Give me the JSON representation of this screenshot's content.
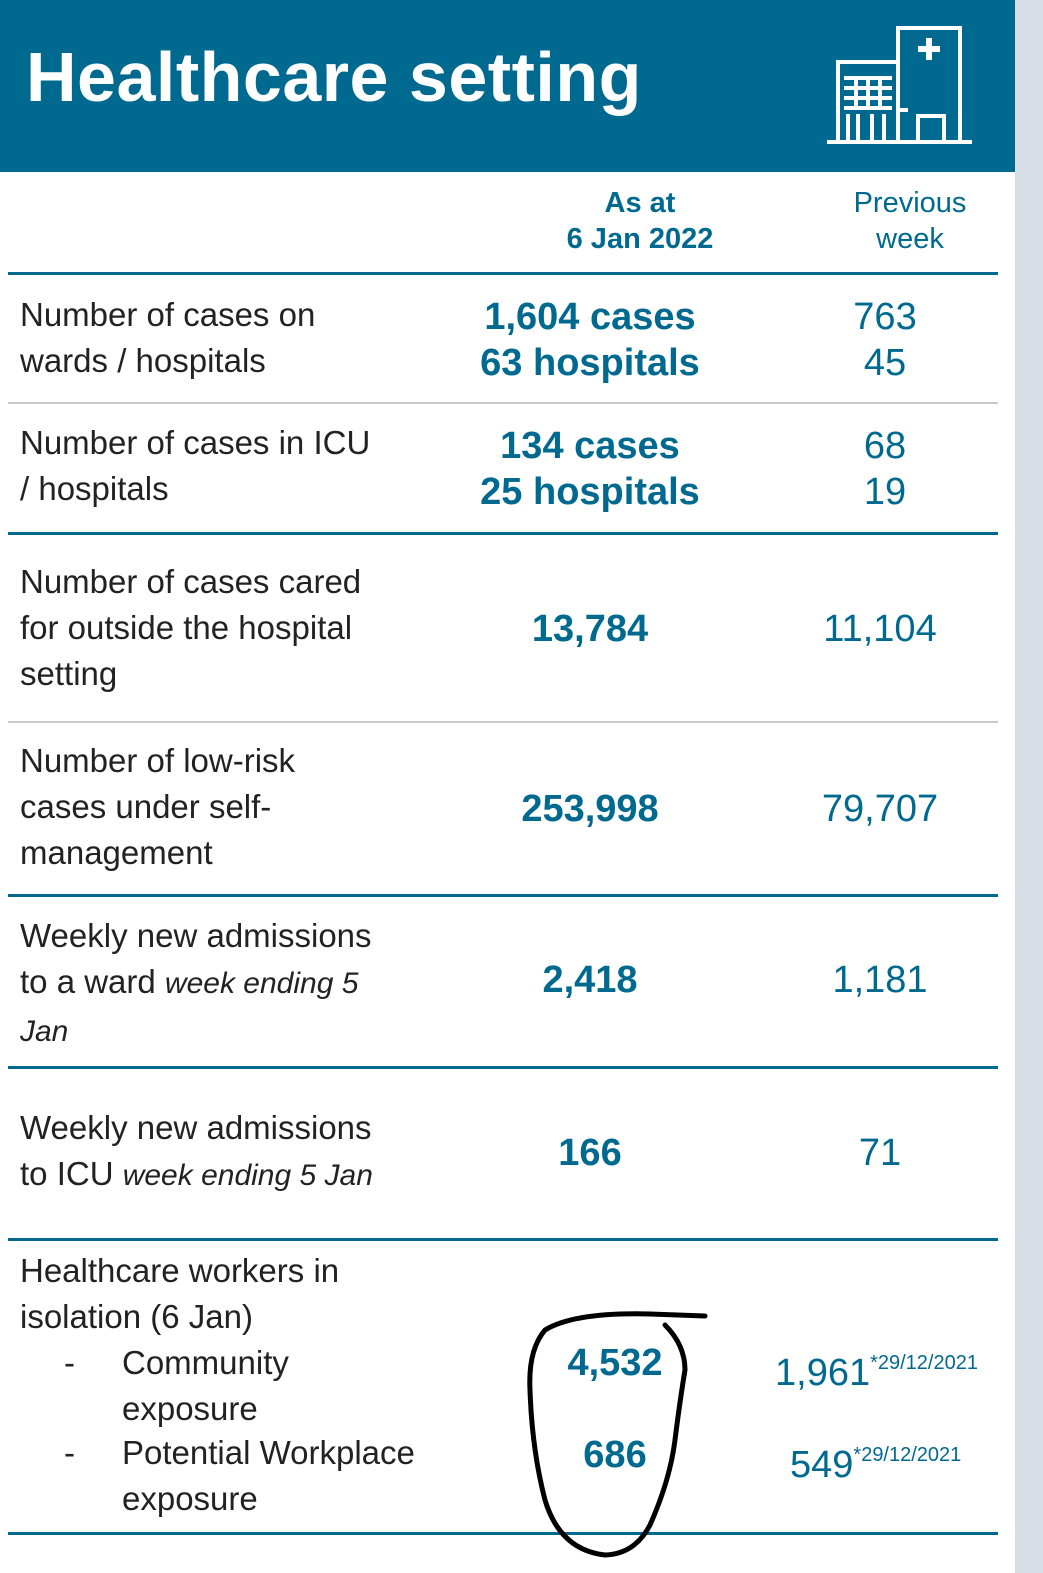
{
  "header": {
    "title": "Healthcare setting",
    "icon": "hospital-icon"
  },
  "columns": {
    "current": [
      "As at",
      "6 Jan 2022"
    ],
    "previous": [
      "Previous",
      "week"
    ]
  },
  "rows": [
    {
      "label": [
        "Number of cases on",
        "wards / hospitals"
      ],
      "current": [
        "1,604 cases",
        "63 hospitals"
      ],
      "previous": [
        "763",
        "45"
      ]
    },
    {
      "label": [
        "Number of cases in ICU",
        "/ hospitals"
      ],
      "current": [
        "134 cases",
        "25 hospitals"
      ],
      "previous": [
        "68",
        "19"
      ]
    },
    {
      "label": [
        "Number of cases cared",
        "for outside the hospital",
        "setting"
      ],
      "current": "13,784",
      "previous": "11,104"
    },
    {
      "label": [
        "Number of low-risk",
        "cases under self-",
        "management"
      ],
      "current": "253,998",
      "previous": "79,707"
    },
    {
      "label_line1": "Weekly new admissions",
      "label_line2_plain": "to a ward ",
      "label_line2_italic": "week ending 5",
      "label_line3_italic": "Jan",
      "current": "2,418",
      "previous": "1,181"
    },
    {
      "label_line1": "Weekly new admissions",
      "label_line2_plain": "to ICU ",
      "label_line2_italic": "week ending 5 Jan",
      "current": "166",
      "previous": "71"
    }
  ],
  "workers": {
    "label": [
      "Healthcare workers in",
      "isolation (6 Jan)"
    ],
    "dash": "-",
    "items": [
      {
        "label": [
          "Community",
          "exposure"
        ],
        "current": "4,532",
        "previous": "1,961",
        "note": "*29/12/2021"
      },
      {
        "label": [
          "Potential Workplace",
          "exposure"
        ],
        "current": "686",
        "previous": "549",
        "note": "*29/12/2021"
      }
    ]
  },
  "colors": {
    "brand": "#006990",
    "text": "#222222",
    "rule_thin": "#c9c9c9",
    "annotation": "#000000"
  }
}
